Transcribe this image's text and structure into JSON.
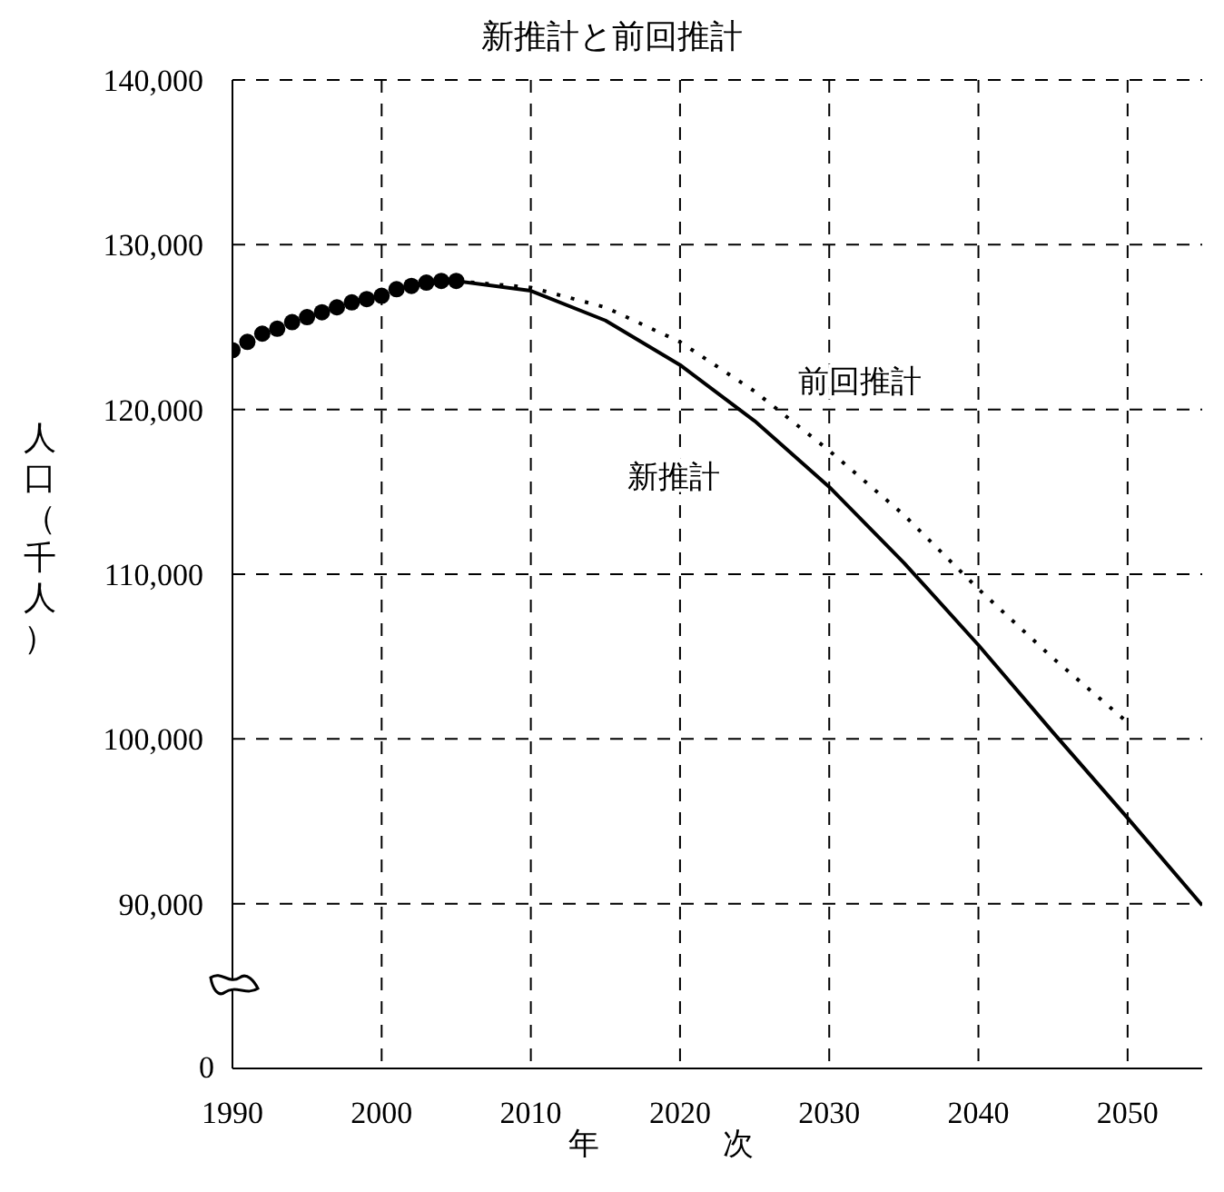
{
  "chart_data": {
    "type": "line",
    "title": "新推計と前回推計",
    "xlabel": "年次",
    "ylabel": "人口（千人）",
    "xlim": [
      1990,
      2055
    ],
    "xticks": [
      1990,
      2000,
      2010,
      2020,
      2030,
      2040,
      2050
    ],
    "ylim": [
      80000,
      140000
    ],
    "yticks": [
      {
        "value": 80000,
        "label": null
      },
      {
        "value": 90000,
        "label": "90,000"
      },
      {
        "value": 100000,
        "label": "100,000"
      },
      {
        "value": 110000,
        "label": "110,000"
      },
      {
        "value": 120000,
        "label": "120,000"
      },
      {
        "value": 130000,
        "label": "130,000"
      },
      {
        "value": 140000,
        "label": "140,000"
      }
    ],
    "grid": true,
    "annotations": [
      "0"
    ],
    "series": [
      {
        "type": "scatter",
        "color": "#000000",
        "marker": "circle",
        "x": [
          1990,
          1991,
          1992,
          1993,
          1994,
          1995,
          1996,
          1997,
          1998,
          1999,
          2000,
          2001,
          2002,
          2003,
          2004,
          2005
        ],
        "values": [
          123600,
          124100,
          124600,
          124900,
          125300,
          125600,
          125900,
          126200,
          126500,
          126700,
          126900,
          127300,
          127500,
          127700,
          127800,
          127800
        ]
      },
      {
        "name": "新推計",
        "color": "#000000",
        "line_style": "solid",
        "x": [
          2005,
          2010,
          2015,
          2020,
          2025,
          2030,
          2035,
          2040,
          2045,
          2050,
          2055
        ],
        "values": [
          127800,
          127200,
          125400,
          122700,
          119300,
          115300,
          110700,
          105700,
          100400,
          95200,
          89900
        ]
      },
      {
        "name": "前回推計",
        "color": "#000000",
        "line_style": "dotted",
        "x": [
          2005,
          2010,
          2015,
          2020,
          2025,
          2030,
          2035,
          2040,
          2045,
          2050
        ],
        "values": [
          127800,
          127400,
          126200,
          124100,
          121100,
          117500,
          113600,
          109100,
          104900,
          101000
        ]
      }
    ]
  }
}
